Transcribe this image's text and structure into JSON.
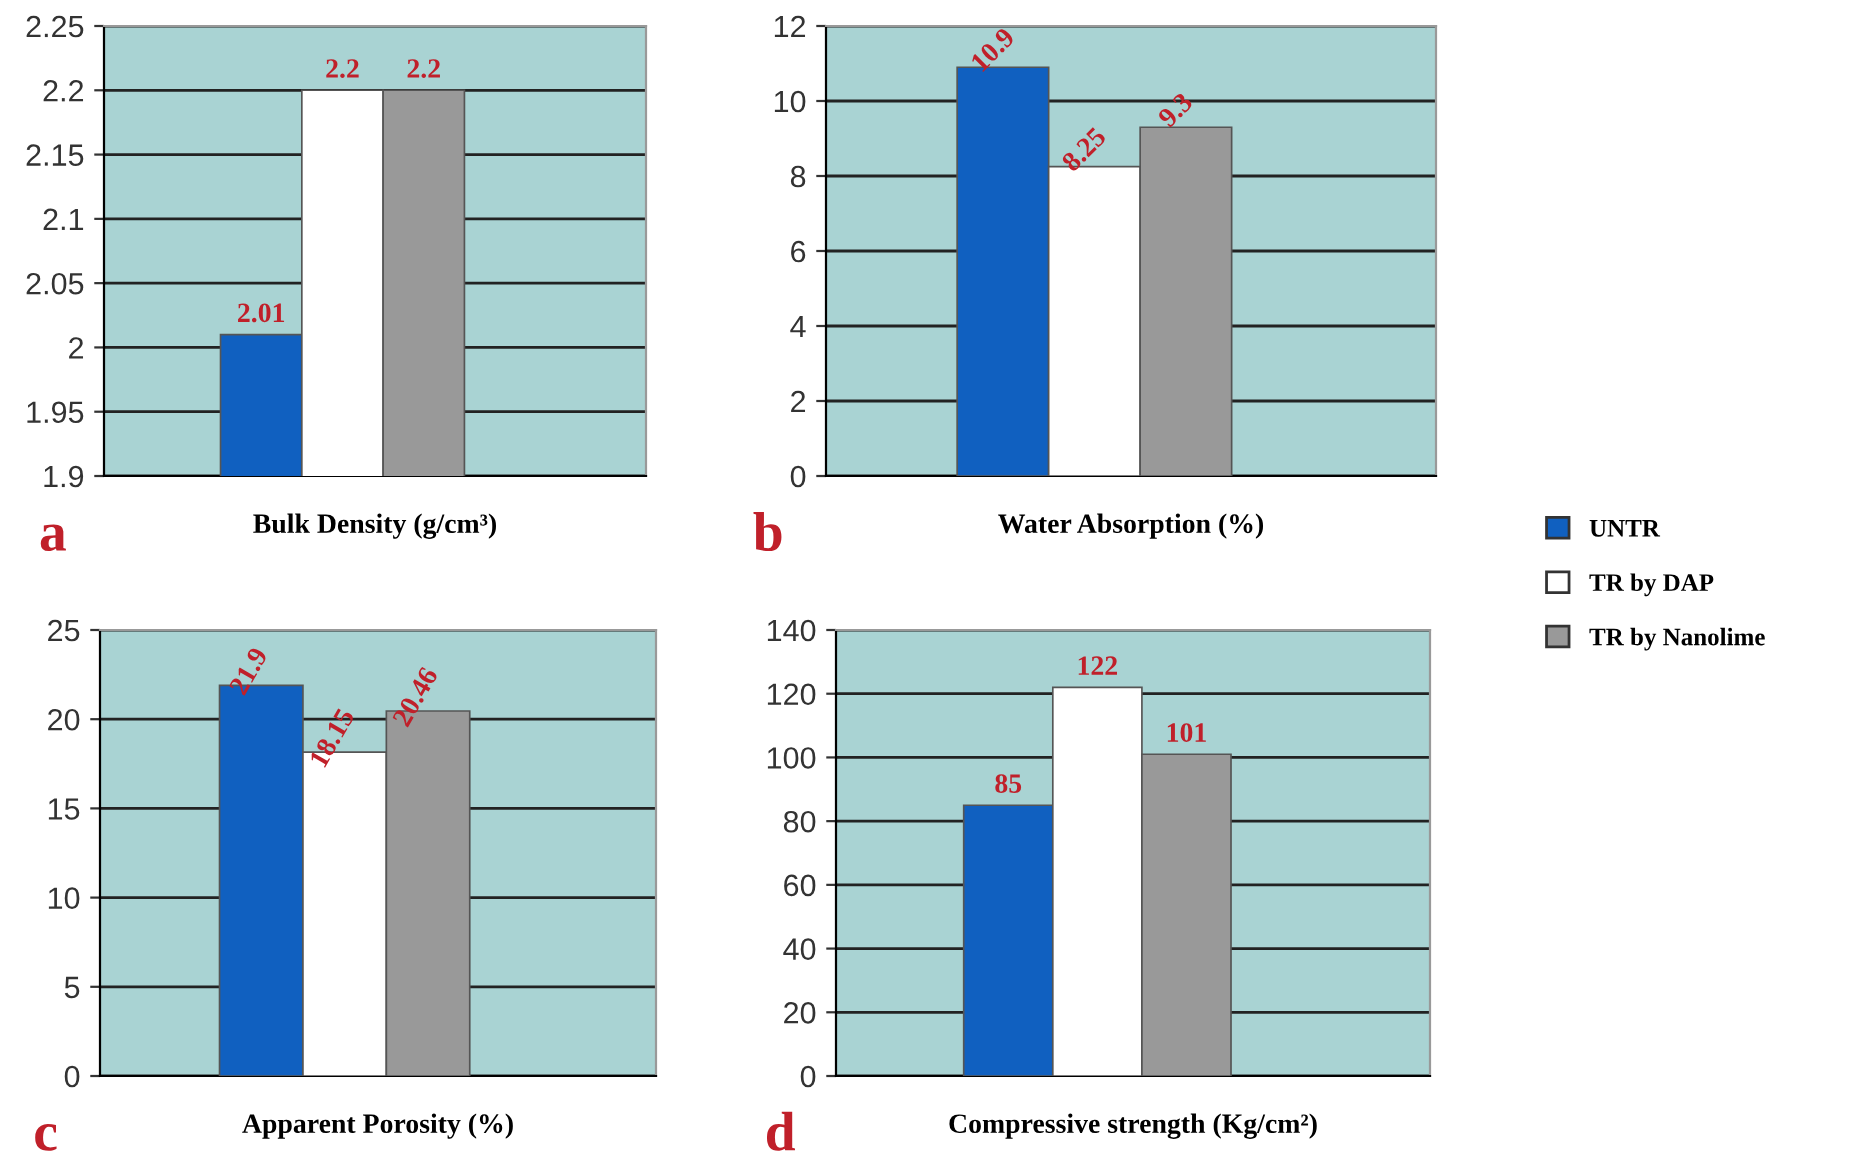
{
  "chart_data": [
    {
      "type": "bar",
      "categories": [
        null
      ],
      "xlabel": "Bulk Density (g/cm³)",
      "ylim": [
        1.9,
        2.25
      ],
      "yticks": [
        1.9,
        1.95,
        2,
        2.05,
        2.1,
        2.15,
        2.2,
        2.25
      ],
      "grid": "y",
      "data_labels": true,
      "annotations": [
        "a"
      ],
      "legend": "right",
      "series": [
        {
          "name": "UNTR",
          "color": "#1060c0",
          "values": [
            2.01
          ]
        },
        {
          "name": "TR by DAP",
          "color": "#ffffff",
          "values": [
            2.2
          ]
        },
        {
          "name": "TR by Nanolime",
          "color": "#999999",
          "values": [
            2.2
          ]
        }
      ]
    },
    {
      "type": "bar",
      "categories": [
        null
      ],
      "xlabel": "Water Absorption (%)",
      "ylim": [
        0,
        12
      ],
      "yticks": [
        0,
        2,
        4,
        6,
        8,
        10,
        12
      ],
      "grid": "y",
      "data_labels": true,
      "annotations": [
        "b"
      ],
      "series": [
        {
          "color": "#1060c0",
          "values": [
            10.9
          ]
        },
        {
          "color": "#ffffff",
          "values": [
            8.25
          ]
        },
        {
          "color": "#999999",
          "values": [
            9.3
          ]
        }
      ]
    },
    {
      "type": "bar",
      "categories": [
        null
      ],
      "xlabel": "Apparent Porosity (%)",
      "ylim": [
        0,
        25
      ],
      "yticks": [
        0,
        5,
        10,
        15,
        20,
        25
      ],
      "grid": "y",
      "data_labels": true,
      "annotations": [
        "c"
      ],
      "series": [
        {
          "color": "#1060c0",
          "values": [
            21.9
          ]
        },
        {
          "color": "#ffffff",
          "values": [
            18.15
          ]
        },
        {
          "color": "#999999",
          "values": [
            20.46
          ]
        }
      ]
    },
    {
      "type": "bar",
      "categories": [
        null
      ],
      "xlabel": "Compressive strength (Kg/cm²)",
      "ylim": [
        0,
        140
      ],
      "yticks": [
        0,
        20,
        40,
        60,
        80,
        100,
        120,
        140
      ],
      "grid": "y",
      "data_labels": true,
      "annotations": [
        "d"
      ],
      "series": [
        {
          "color": "#1060c0",
          "values": [
            85
          ]
        },
        {
          "color": "#ffffff",
          "values": [
            122
          ]
        },
        {
          "color": "#999999",
          "values": [
            101
          ]
        }
      ]
    }
  ]
}
